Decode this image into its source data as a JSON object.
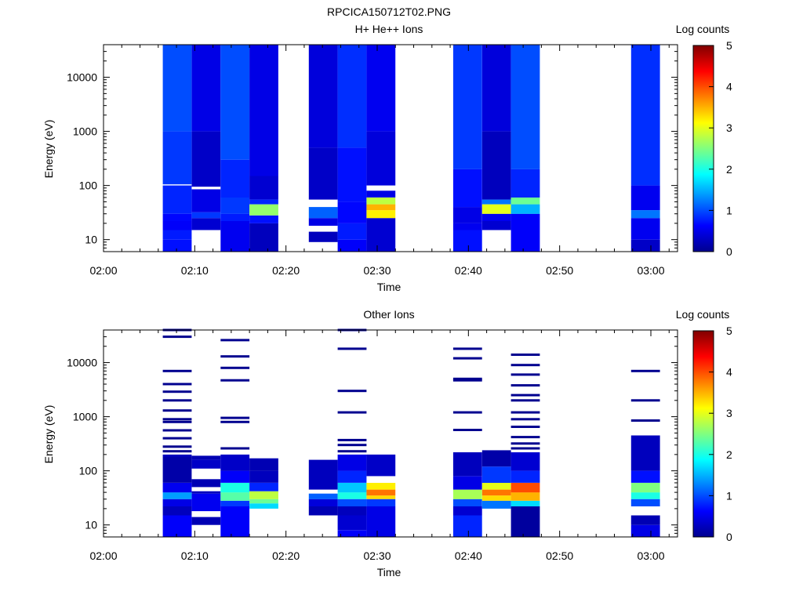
{
  "title": "RPCICA150712T02.PNG",
  "chart_data": [
    {
      "type": "heatmap",
      "title": "H+ He++ Ions",
      "xlabel": "Time",
      "ylabel": "Energy (eV)",
      "y_scale": "log",
      "ylim": [
        6,
        40000
      ],
      "x_ticks": [
        "02:00",
        "02:10",
        "02:20",
        "02:30",
        "02:40",
        "02:50",
        "03:00"
      ],
      "y_ticks": [
        "10",
        "100",
        "1000",
        "10000"
      ],
      "colorbar": {
        "label": "Log counts",
        "range": [
          0,
          5
        ],
        "ticks": [
          "0",
          "1",
          "2",
          "3",
          "4",
          "5"
        ]
      },
      "scans": [
        {
          "start": "02:06:30",
          "end": "02:09:40",
          "bins": [
            [
              6,
              10,
              0.7
            ],
            [
              10,
              15,
              0.75
            ],
            [
              15,
              22,
              0.6
            ],
            [
              22,
              30,
              0.65
            ],
            [
              30,
              100,
              0.8
            ],
            [
              100,
              105,
              null
            ],
            [
              105,
              1000,
              0.9
            ],
            [
              1000,
              40000,
              1.0
            ]
          ]
        },
        {
          "start": "02:09:40",
          "end": "02:12:50",
          "bins": [
            [
              6,
              15,
              null
            ],
            [
              15,
              25,
              0.4
            ],
            [
              25,
              32,
              0.9
            ],
            [
              32,
              85,
              0.5
            ],
            [
              85,
              95,
              null
            ],
            [
              95,
              1000,
              0.35
            ],
            [
              1000,
              40000,
              0.5
            ]
          ]
        },
        {
          "start": "02:12:50",
          "end": "02:16:00",
          "bins": [
            [
              6,
              22,
              0.55
            ],
            [
              22,
              30,
              0.75
            ],
            [
              30,
              60,
              0.9
            ],
            [
              60,
              300,
              0.8
            ],
            [
              300,
              40000,
              1.0
            ]
          ]
        },
        {
          "start": "02:16:00",
          "end": "02:19:10",
          "bins": [
            [
              6,
              20,
              0.3
            ],
            [
              20,
              28,
              0.7
            ],
            [
              28,
              45,
              2.6
            ],
            [
              45,
              55,
              0.8
            ],
            [
              55,
              150,
              0.4
            ],
            [
              150,
              40000,
              0.5
            ]
          ]
        },
        {
          "start": "02:22:30",
          "end": "02:25:40",
          "bins": [
            [
              6,
              9,
              null
            ],
            [
              9,
              14,
              0.3
            ],
            [
              14,
              18,
              null
            ],
            [
              18,
              25,
              0.5
            ],
            [
              25,
              40,
              1.1
            ],
            [
              40,
              55,
              null
            ],
            [
              55,
              500,
              0.35
            ],
            [
              500,
              40000,
              0.45
            ]
          ]
        },
        {
          "start": "02:25:40",
          "end": "02:28:50",
          "bins": [
            [
              6,
              10,
              0.6
            ],
            [
              10,
              20,
              0.75
            ],
            [
              20,
              50,
              0.65
            ],
            [
              50,
              500,
              0.7
            ],
            [
              500,
              40000,
              0.85
            ]
          ]
        },
        {
          "start": "02:28:50",
          "end": "02:32:00",
          "bins": [
            [
              6,
              25,
              0.4
            ],
            [
              25,
              35,
              3.2
            ],
            [
              35,
              45,
              3.5
            ],
            [
              45,
              60,
              2.8
            ],
            [
              60,
              80,
              0.5
            ],
            [
              80,
              100,
              null
            ],
            [
              100,
              1000,
              0.45
            ],
            [
              1000,
              40000,
              0.55
            ]
          ]
        },
        {
          "start": "02:38:20",
          "end": "02:41:30",
          "bins": [
            [
              6,
              15,
              0.7
            ],
            [
              15,
              20,
              0.55
            ],
            [
              20,
              40,
              0.5
            ],
            [
              40,
              200,
              0.7
            ],
            [
              200,
              40000,
              0.9
            ]
          ]
        },
        {
          "start": "02:41:30",
          "end": "02:44:40",
          "bins": [
            [
              6,
              15,
              null
            ],
            [
              15,
              22,
              0.4
            ],
            [
              22,
              30,
              0.55
            ],
            [
              30,
              45,
              3.0
            ],
            [
              45,
              55,
              1.2
            ],
            [
              55,
              1000,
              0.3
            ],
            [
              1000,
              40000,
              0.45
            ]
          ]
        },
        {
          "start": "02:44:40",
          "end": "02:47:50",
          "bins": [
            [
              6,
              30,
              0.6
            ],
            [
              30,
              45,
              1.5
            ],
            [
              45,
              60,
              2.4
            ],
            [
              60,
              200,
              0.8
            ],
            [
              200,
              40000,
              1.0
            ]
          ]
        },
        {
          "start": "02:57:50",
          "end": "03:01:00",
          "bins": [
            [
              6,
              10,
              0.35
            ],
            [
              10,
              25,
              0.55
            ],
            [
              25,
              35,
              1.2
            ],
            [
              35,
              100,
              0.55
            ],
            [
              100,
              40000,
              0.85
            ]
          ]
        }
      ]
    },
    {
      "type": "heatmap",
      "title": "Other Ions",
      "xlabel": "Time",
      "ylabel": "Energy (eV)",
      "y_scale": "log",
      "ylim": [
        6,
        40000
      ],
      "x_ticks": [
        "02:00",
        "02:10",
        "02:20",
        "02:30",
        "02:40",
        "02:50",
        "03:00"
      ],
      "y_ticks": [
        "10",
        "100",
        "1000",
        "10000"
      ],
      "colorbar": {
        "label": "Log counts",
        "range": [
          0,
          5
        ],
        "ticks": [
          "0",
          "1",
          "2",
          "3",
          "4",
          "5"
        ]
      },
      "scans": [
        {
          "start": "02:06:30",
          "end": "02:09:40",
          "bins": [
            [
              6,
              15,
              0.6
            ],
            [
              15,
              22,
              0.3
            ],
            [
              22,
              30,
              0.5
            ],
            [
              30,
              40,
              1.4
            ],
            [
              40,
              60,
              0.55
            ],
            [
              60,
              180,
              0.2
            ],
            [
              180,
              200,
              0.3
            ]
          ],
          "lines": [
            30000,
            40000,
            7000,
            4000,
            2900,
            2000,
            1300,
            900,
            800,
            560,
            400,
            280,
            230
          ]
        },
        {
          "start": "02:09:40",
          "end": "02:12:50",
          "bins": [
            [
              6,
              10,
              null
            ],
            [
              10,
              14,
              0.25
            ],
            [
              14,
              18,
              null
            ],
            [
              18,
              38,
              0.55
            ],
            [
              38,
              42,
              0.3
            ],
            [
              42,
              50,
              null
            ],
            [
              50,
              70,
              0.25
            ],
            [
              70,
              110,
              null
            ],
            [
              110,
              160,
              0.35
            ],
            [
              160,
              190,
              0.25
            ]
          ]
        },
        {
          "start": "02:12:50",
          "end": "02:16:00",
          "bins": [
            [
              6,
              22,
              0.6
            ],
            [
              22,
              28,
              0.9
            ],
            [
              28,
              40,
              2.3
            ],
            [
              40,
              60,
              2.0
            ],
            [
              60,
              100,
              0.6
            ],
            [
              100,
              200,
              0.35
            ]
          ],
          "lines": [
            26000,
            13000,
            8000,
            4700,
            950,
            800,
            260
          ]
        },
        {
          "start": "02:16:00",
          "end": "02:19:10",
          "bins": [
            [
              20,
              25,
              1.7
            ],
            [
              25,
              30,
              2.4
            ],
            [
              30,
              42,
              2.8
            ],
            [
              42,
              60,
              0.8
            ],
            [
              60,
              100,
              0.3
            ],
            [
              100,
              170,
              0.25
            ]
          ]
        },
        {
          "start": "02:22:30",
          "end": "02:25:40",
          "bins": [
            [
              15,
              22,
              0.25
            ],
            [
              22,
              30,
              0.45
            ],
            [
              30,
              38,
              1.1
            ],
            [
              38,
              45,
              null
            ],
            [
              45,
              160,
              0.3
            ]
          ]
        },
        {
          "start": "02:25:40",
          "end": "02:28:50",
          "bins": [
            [
              6,
              8,
              0.6
            ],
            [
              8,
              15,
              0.4
            ],
            [
              15,
              22,
              0.3
            ],
            [
              22,
              30,
              1.0
            ],
            [
              30,
              40,
              2.0
            ],
            [
              40,
              60,
              1.6
            ],
            [
              60,
              100,
              0.8
            ],
            [
              100,
              200,
              0.5
            ]
          ],
          "lines": [
            40000,
            18000,
            3000,
            1200,
            370,
            300,
            230
          ]
        },
        {
          "start": "02:28:50",
          "end": "02:32:00",
          "bins": [
            [
              6,
              22,
              0.5
            ],
            [
              22,
              30,
              0.9
            ],
            [
              30,
              35,
              3.3
            ],
            [
              35,
              45,
              3.8
            ],
            [
              45,
              60,
              3.2
            ],
            [
              60,
              80,
              null
            ],
            [
              80,
              200,
              0.35
            ]
          ]
        },
        {
          "start": "02:38:20",
          "end": "02:41:30",
          "bins": [
            [
              6,
              15,
              0.8
            ],
            [
              15,
              22,
              0.4
            ],
            [
              22,
              30,
              1.0
            ],
            [
              30,
              45,
              2.7
            ],
            [
              45,
              80,
              0.5
            ],
            [
              80,
              220,
              0.3
            ]
          ],
          "lines": [
            18000,
            12000,
            5000,
            4700,
            1200,
            570
          ]
        },
        {
          "start": "02:41:30",
          "end": "02:44:40",
          "bins": [
            [
              6,
              20,
              null
            ],
            [
              20,
              28,
              1.2
            ],
            [
              28,
              35,
              3.3
            ],
            [
              35,
              45,
              3.8
            ],
            [
              45,
              60,
              3.0
            ],
            [
              60,
              120,
              0.9
            ],
            [
              120,
              240,
              0.2
            ]
          ]
        },
        {
          "start": "02:44:40",
          "end": "02:47:50",
          "bins": [
            [
              6,
              22,
              0.15
            ],
            [
              22,
              28,
              1.7
            ],
            [
              28,
              40,
              3.5
            ],
            [
              40,
              60,
              4.0
            ],
            [
              60,
              100,
              0.8
            ],
            [
              100,
              220,
              0.4
            ]
          ],
          "lines": [
            14000,
            9000,
            6000,
            3800,
            2500,
            2000,
            1200,
            900,
            650,
            420,
            320,
            260
          ]
        },
        {
          "start": "02:57:50",
          "end": "03:01:00",
          "bins": [
            [
              6,
              10,
              0.5
            ],
            [
              10,
              15,
              0.25
            ],
            [
              15,
              22,
              null
            ],
            [
              22,
              30,
              1.0
            ],
            [
              30,
              40,
              2.0
            ],
            [
              40,
              60,
              2.5
            ],
            [
              60,
              100,
              0.7
            ],
            [
              100,
              450,
              0.3
            ]
          ],
          "lines": [
            7000,
            2000,
            850
          ]
        }
      ]
    }
  ]
}
